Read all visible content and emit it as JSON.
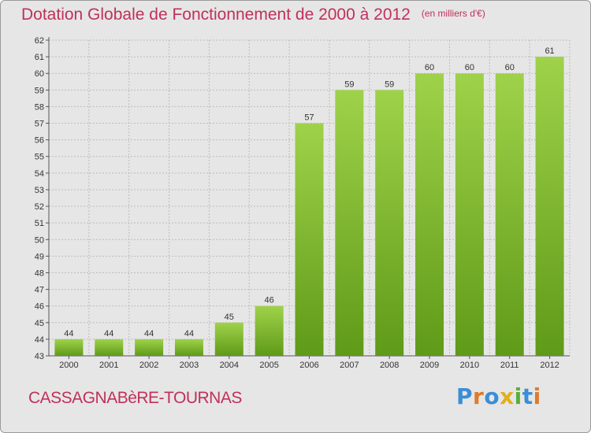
{
  "title": "Dotation Globale de Fonctionnement de 2000 à 2012",
  "unit_note": "(en milliers d'€)",
  "commune": "CASSAGNABèRE-TOURNAS",
  "brand": {
    "letters": [
      "P",
      "r",
      "o",
      "x",
      "i",
      "t",
      "i"
    ],
    "colors": [
      "#3a8ed6",
      "#e07a2a",
      "#3a8ed6",
      "#e0b020",
      "#5aae3c",
      "#3a8ed6",
      "#e07a2a"
    ]
  },
  "chart_data": {
    "type": "bar",
    "categories": [
      "2000",
      "2001",
      "2002",
      "2003",
      "2004",
      "2005",
      "2006",
      "2007",
      "2008",
      "2009",
      "2010",
      "2011",
      "2012"
    ],
    "values": [
      44,
      44,
      44,
      44,
      45,
      46,
      57,
      59,
      59,
      60,
      60,
      60,
      61
    ],
    "data_labels": [
      "44",
      "44",
      "44",
      "44",
      "45",
      "46",
      "57",
      "59",
      "59",
      "60",
      "60",
      "60",
      "61"
    ],
    "ylim": [
      43,
      62
    ],
    "yticks": [
      "43",
      "44",
      "45",
      "46",
      "47",
      "48",
      "49",
      "50",
      "51",
      "52",
      "53",
      "54",
      "55",
      "56",
      "57",
      "58",
      "59",
      "60",
      "61",
      "62"
    ],
    "grid": true,
    "bar_color_top": "#9fd24a",
    "bar_color_bottom": "#5f9a18"
  }
}
